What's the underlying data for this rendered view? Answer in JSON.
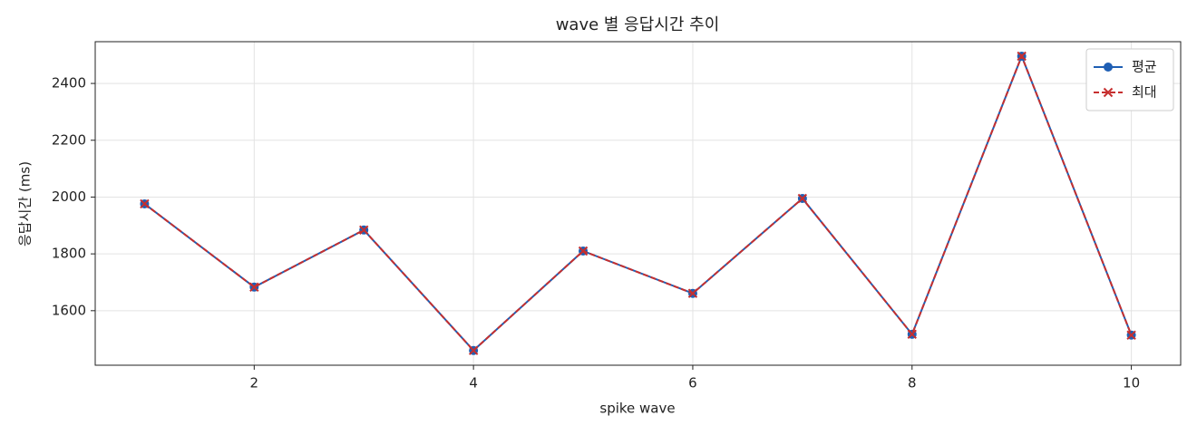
{
  "chart_data": {
    "type": "line",
    "title": "wave 별 응답시간 추이",
    "x_label": "spike wave",
    "y_label": "응답시간 (ms)",
    "x": [
      1,
      2,
      3,
      4,
      5,
      6,
      7,
      8,
      9,
      10
    ],
    "series": [
      {
        "name": "평균",
        "color": "#1f5fb4",
        "marker": "circle",
        "dash": false,
        "values": [
          1976,
          1683,
          1884,
          1460,
          1810,
          1661,
          1995,
          1517,
          2496,
          1514
        ]
      },
      {
        "name": "최대",
        "color": "#c62f2f",
        "marker": "x",
        "dash": true,
        "values": [
          1976,
          1683,
          1884,
          1460,
          1810,
          1661,
          1995,
          1517,
          2496,
          1514
        ]
      }
    ],
    "xlim": [
      0.55,
      10.45
    ],
    "ylim": [
      1408,
      2547
    ],
    "xticks": [
      2,
      4,
      6,
      8,
      10
    ],
    "yticks": [
      1600,
      1800,
      2000,
      2200,
      2400
    ],
    "grid": true,
    "legend": "upper right"
  }
}
